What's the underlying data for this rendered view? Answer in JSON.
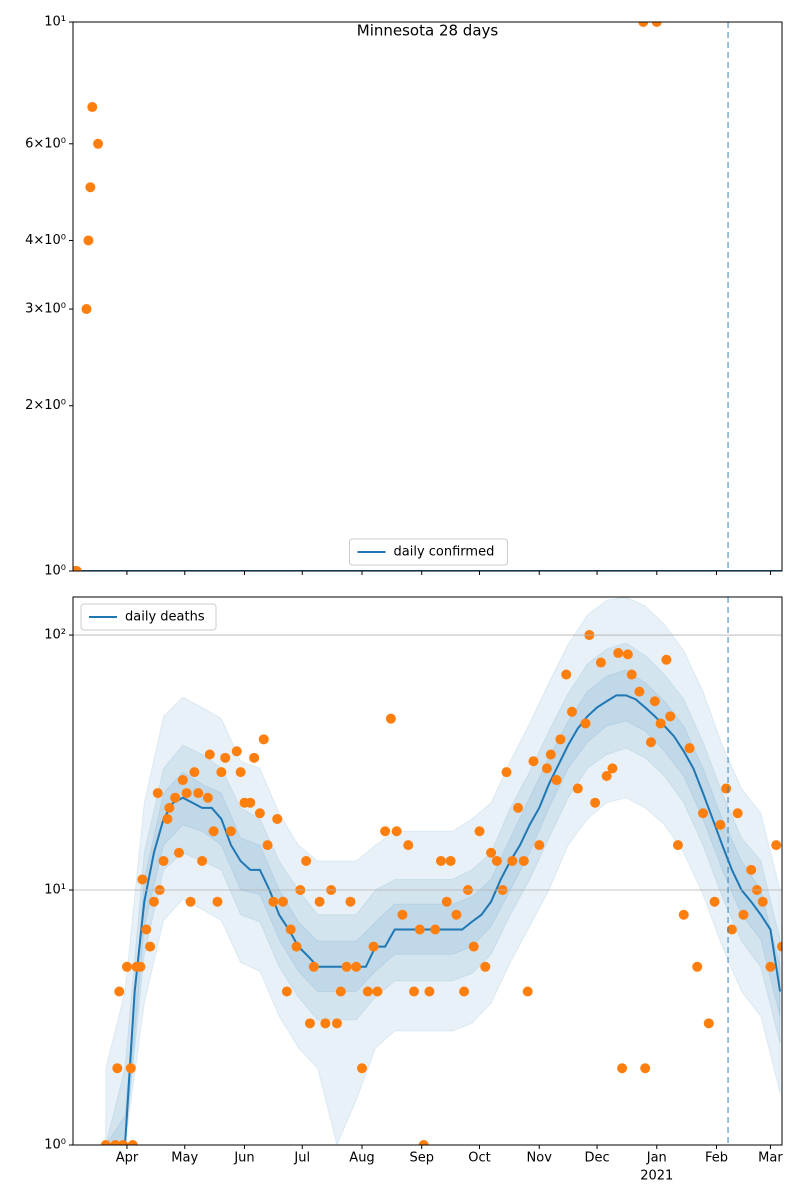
{
  "chart_data": [
    {
      "type": "line",
      "title": "Minnesota 28 days",
      "yscale": "log",
      "grid": false,
      "legend": "lower center",
      "xlim": [
        3,
        371
      ],
      "xticks": [
        31,
        61,
        92,
        122,
        153,
        184,
        214,
        245,
        275,
        306,
        337,
        365
      ],
      "ylim": [
        1,
        10
      ],
      "yticks": [
        {
          "value": 1,
          "label": "10⁰"
        },
        {
          "value": 2,
          "label": "2×10⁰"
        },
        {
          "value": 3,
          "label": "3×10⁰"
        },
        {
          "value": 4,
          "label": "4×10⁰"
        },
        {
          "value": 6,
          "label": "6×10⁰"
        },
        {
          "value": 10,
          "label": "10¹"
        }
      ],
      "vline": 343,
      "series": [
        {
          "name": "daily confirmed",
          "color": "#1f77b4",
          "x": [
            3,
            371
          ],
          "values": [
            1,
            1
          ]
        }
      ],
      "points": {
        "color": "#ff7f0e",
        "x": [
          4,
          5,
          10,
          11,
          12,
          13,
          16,
          299,
          306
        ],
        "values": [
          1,
          1,
          3,
          4,
          5,
          7,
          6,
          10,
          10
        ]
      }
    },
    {
      "type": "line",
      "yscale": "log",
      "grid": true,
      "legend": "upper left",
      "xlim": [
        3,
        371
      ],
      "xticks": [
        {
          "value": 31,
          "label": "Apr"
        },
        {
          "value": 61,
          "label": "May"
        },
        {
          "value": 92,
          "label": "Jun"
        },
        {
          "value": 122,
          "label": "Jul"
        },
        {
          "value": 153,
          "label": "Aug"
        },
        {
          "value": 184,
          "label": "Sep"
        },
        {
          "value": 214,
          "label": "Oct"
        },
        {
          "value": 245,
          "label": "Nov"
        },
        {
          "value": 275,
          "label": "Dec"
        },
        {
          "value": 306,
          "label": "Jan"
        },
        {
          "value": 337,
          "label": "Feb"
        },
        {
          "value": 365,
          "label": "Mar"
        }
      ],
      "xticks_secondary": [
        {
          "value": 306,
          "label": "2021"
        }
      ],
      "ylim": [
        1,
        141
      ],
      "yticks": [
        {
          "value": 1,
          "label": "10⁰"
        },
        {
          "value": 10,
          "label": "10¹"
        },
        {
          "value": 100,
          "label": "10²"
        }
      ],
      "vline": 343,
      "bands": [
        {
          "color": "#1f77b4",
          "opacity": 0.1,
          "x": [
            20,
            30,
            40,
            50,
            60,
            70,
            80,
            90,
            100,
            110,
            120,
            130,
            140,
            150,
            160,
            170,
            180,
            190,
            200,
            210,
            220,
            230,
            240,
            250,
            260,
            270,
            280,
            290,
            300,
            310,
            320,
            330,
            340,
            350,
            360,
            370
          ],
          "lower": [
            1,
            1,
            3.6,
            7.6,
            9.2,
            8.4,
            7.6,
            5.2,
            4.8,
            3.2,
            2.4,
            2,
            1,
            1.5,
            2.4,
            2.8,
            2.8,
            2.8,
            2.8,
            3,
            3.6,
            5.2,
            7.2,
            10,
            15,
            19,
            22,
            23,
            21,
            18,
            14,
            9.6,
            6,
            4,
            3.2,
            1.6
          ],
          "upper": [
            2,
            4,
            22,
            48,
            57,
            52,
            47,
            32,
            30,
            20,
            15,
            13,
            13,
            13,
            15,
            17,
            17,
            17,
            17,
            19,
            22,
            32,
            45,
            65,
            92,
            120,
            137,
            141,
            130,
            110,
            87,
            60,
            37,
            25,
            20,
            10
          ]
        },
        {
          "color": "#1f77b4",
          "opacity": 0.1,
          "x": [
            20,
            30,
            40,
            50,
            60,
            70,
            80,
            90,
            100,
            110,
            120,
            130,
            140,
            150,
            160,
            170,
            180,
            190,
            200,
            210,
            220,
            230,
            240,
            250,
            260,
            270,
            280,
            290,
            300,
            310,
            320,
            330,
            340,
            350,
            360,
            370
          ],
          "lower": [
            1,
            1,
            5.6,
            12,
            14,
            13,
            12,
            8,
            7.5,
            5,
            3.8,
            3.1,
            3.1,
            3.1,
            3.8,
            4.4,
            4.4,
            4.4,
            4.4,
            4.7,
            5.6,
            8,
            11,
            16,
            23,
            30,
            34,
            36,
            33,
            28,
            22,
            15,
            9.4,
            6.3,
            5,
            2.5
          ],
          "upper": [
            1,
            2,
            14,
            30,
            37,
            34,
            30,
            21,
            19,
            13,
            10,
            8,
            8,
            8,
            10,
            11,
            11,
            11,
            11,
            12,
            14,
            21,
            29,
            42,
            59,
            77,
            88,
            93,
            83,
            70,
            56,
            38,
            24,
            16,
            13,
            6.4
          ]
        },
        {
          "color": "#1f77b4",
          "opacity": 0.1,
          "x": [
            20,
            30,
            40,
            50,
            60,
            70,
            80,
            90,
            100,
            110,
            120,
            130,
            140,
            150,
            160,
            170,
            180,
            190,
            200,
            210,
            220,
            230,
            240,
            250,
            260,
            270,
            280,
            290,
            300,
            310,
            320,
            330,
            340,
            350,
            360,
            370
          ],
          "lower": [
            1,
            1,
            7.2,
            15,
            18,
            17,
            15,
            10,
            9.6,
            6.4,
            4.8,
            4,
            4,
            4,
            4.8,
            5.6,
            5.6,
            5.6,
            5.6,
            6,
            7.2,
            10,
            14,
            21,
            30,
            38,
            44,
            46,
            42,
            35,
            28,
            19,
            12,
            8,
            6.4,
            3.2
          ],
          "upper": [
            1,
            1.3,
            11,
            24,
            29,
            26,
            24,
            16,
            15,
            10,
            7.5,
            6.3,
            6.3,
            6.3,
            7.5,
            8.8,
            8.8,
            8.8,
            8.8,
            9.4,
            11,
            16,
            23,
            33,
            46,
            60,
            69,
            73,
            65,
            55,
            44,
            30,
            19,
            13,
            10,
            5
          ]
        }
      ],
      "series": [
        {
          "name": "daily deaths",
          "color": "#1f77b4",
          "x": [
            30,
            35,
            40,
            45,
            50,
            55,
            60,
            65,
            70,
            75,
            80,
            85,
            90,
            95,
            100,
            105,
            110,
            115,
            120,
            125,
            130,
            135,
            140,
            145,
            150,
            155,
            160,
            165,
            170,
            175,
            180,
            185,
            190,
            195,
            200,
            205,
            210,
            215,
            220,
            225,
            230,
            235,
            240,
            245,
            250,
            255,
            260,
            265,
            270,
            275,
            280,
            285,
            290,
            295,
            300,
            305,
            310,
            315,
            320,
            325,
            330,
            335,
            340,
            345,
            350,
            355,
            360,
            365,
            370
          ],
          "values": [
            1,
            4,
            9,
            14,
            19,
            22,
            23,
            22,
            21,
            21,
            19,
            15,
            13,
            12,
            12,
            10,
            8,
            7,
            6,
            5.5,
            5,
            5,
            5,
            5,
            5,
            5,
            6,
            6,
            7,
            7,
            7,
            7,
            7,
            7,
            7,
            7,
            7.5,
            8,
            9,
            11,
            13,
            15,
            18,
            21,
            26,
            31,
            37,
            43,
            48,
            52,
            55,
            58,
            58,
            56,
            52,
            48,
            44,
            40,
            35,
            30,
            24,
            19,
            15,
            12,
            10,
            9,
            8,
            7,
            4
          ]
        }
      ],
      "points": {
        "color": "#ff7f0e",
        "x": [
          20,
          25,
          26,
          27,
          29,
          31,
          33,
          34,
          36,
          38,
          39,
          41,
          43,
          45,
          47,
          48,
          50,
          52,
          53,
          56,
          58,
          60,
          62,
          64,
          66,
          68,
          70,
          73,
          74,
          76,
          78,
          80,
          82,
          85,
          88,
          90,
          92,
          95,
          97,
          100,
          102,
          104,
          107,
          109,
          112,
          114,
          116,
          119,
          121,
          124,
          126,
          128,
          131,
          134,
          137,
          140,
          142,
          145,
          147,
          150,
          153,
          156,
          159,
          161,
          165,
          168,
          171,
          174,
          177,
          180,
          183,
          185,
          188,
          191,
          194,
          197,
          199,
          202,
          206,
          208,
          211,
          214,
          217,
          220,
          223,
          226,
          228,
          231,
          234,
          237,
          239,
          242,
          245,
          249,
          251,
          254,
          256,
          259,
          262,
          265,
          269,
          271,
          274,
          277,
          280,
          283,
          286,
          288,
          291,
          293,
          297,
          300,
          303,
          305,
          308,
          311,
          313,
          317,
          320,
          323,
          327,
          330,
          333,
          336,
          339,
          342,
          345,
          348,
          351,
          355,
          358,
          361,
          365,
          368,
          371
        ],
        "values": [
          1,
          1,
          2,
          4,
          1,
          5,
          2,
          1,
          5,
          5,
          11,
          7,
          6,
          9,
          24,
          10,
          13,
          19,
          21,
          23,
          14,
          27,
          24,
          9,
          29,
          24,
          13,
          23,
          34,
          17,
          9,
          29,
          33,
          17,
          35,
          29,
          22,
          22,
          33,
          20,
          39,
          15,
          9,
          19,
          9,
          4,
          7,
          6,
          10,
          13,
          3,
          5,
          9,
          3,
          10,
          3,
          4,
          5,
          9,
          5,
          2,
          4,
          6,
          4,
          17,
          47,
          17,
          8,
          15,
          4,
          7,
          1,
          4,
          7,
          13,
          9,
          13,
          8,
          4,
          10,
          6,
          17,
          5,
          14,
          13,
          10,
          29,
          13,
          21,
          13,
          4,
          32,
          15,
          30,
          34,
          27,
          39,
          70,
          50,
          25,
          45,
          100,
          22,
          78,
          28,
          30,
          85,
          2,
          84,
          70,
          60,
          2,
          38,
          55,
          45,
          80,
          48,
          15,
          8,
          36,
          5,
          20,
          3,
          9,
          18,
          25,
          7,
          20,
          8,
          12,
          10,
          9,
          5,
          15,
          6
        ]
      }
    }
  ]
}
